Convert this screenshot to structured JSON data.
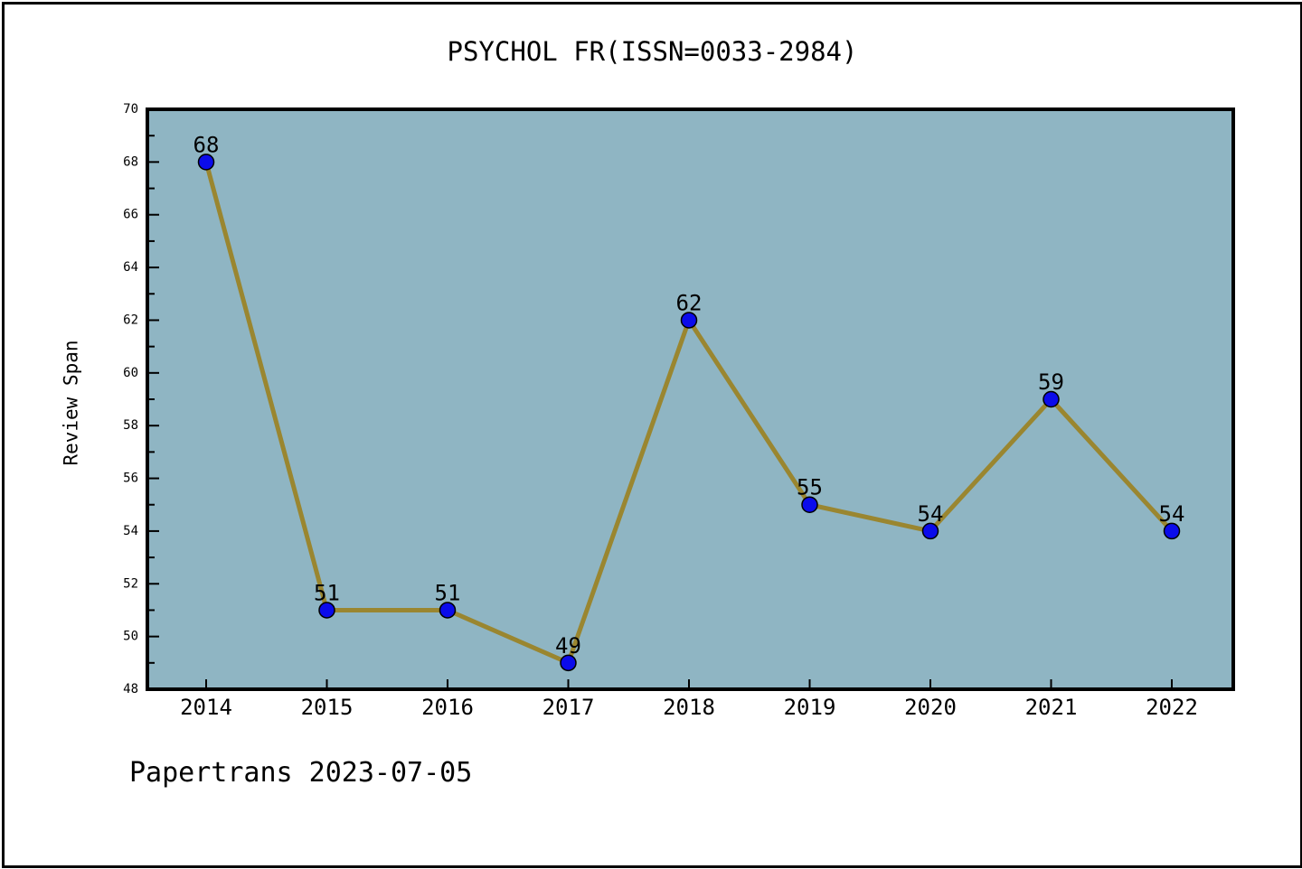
{
  "figure": {
    "footer": "Papertrans 2023-07-05"
  },
  "chart_data": {
    "type": "line",
    "title": "PSYCHOL FR(ISSN=0033-2984)",
    "ylabel": "Review Span",
    "xlabel": "",
    "x": [
      "2014",
      "2015",
      "2016",
      "2017",
      "2018",
      "2019",
      "2020",
      "2021",
      "2022"
    ],
    "series": [
      {
        "name": "Review Span",
        "values": [
          68,
          51,
          51,
          49,
          62,
          55,
          54,
          59,
          54
        ]
      }
    ],
    "point_labels": [
      "68",
      "51",
      "51",
      "49",
      "62",
      "55",
      "54",
      "59",
      "54"
    ],
    "ylim": [
      48,
      70
    ],
    "ytick_step": 2,
    "y_minor_ticks": true,
    "grid": false,
    "legend": "none",
    "colors": {
      "page_background": "#FFFFFF",
      "plot_background": "#8FB5C3",
      "line": "#9A8630",
      "marker_fill": "#0B0BEB",
      "marker_edge": "#000000",
      "frame": "#000000",
      "text": "#000000"
    }
  }
}
